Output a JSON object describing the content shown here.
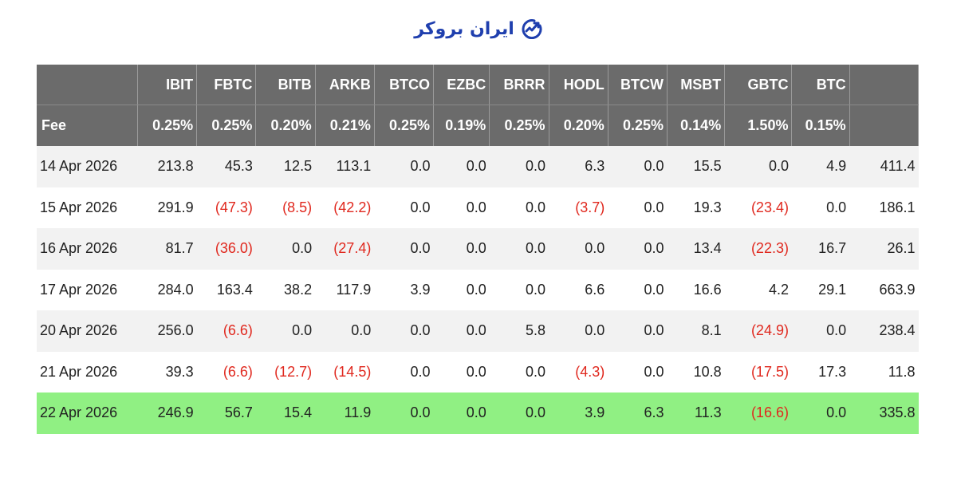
{
  "brand": {
    "logo_text": "ایران بروکر",
    "icon": "trend-chart-icon",
    "color": "#1f3fae"
  },
  "table": {
    "columns": [
      "",
      "IBIT",
      "FBTC",
      "BITB",
      "ARKB",
      "BTCO",
      "EZBC",
      "BRRR",
      "HODL",
      "BTCW",
      "MSBT",
      "GBTC",
      "BTC",
      ""
    ],
    "fee_row": [
      "Fee",
      "0.25%",
      "0.25%",
      "0.20%",
      "0.21%",
      "0.25%",
      "0.19%",
      "0.25%",
      "0.20%",
      "0.25%",
      "0.14%",
      "1.50%",
      "0.15%",
      ""
    ],
    "rows": [
      {
        "date": "14 Apr 2026",
        "values": [
          "213.8",
          "45.3",
          "12.5",
          "113.1",
          "0.0",
          "0.0",
          "0.0",
          "6.3",
          "0.0",
          "15.5",
          "0.0",
          "4.9",
          "411.4"
        ],
        "highlight": false
      },
      {
        "date": "15 Apr 2026",
        "values": [
          "291.9",
          "(47.3)",
          "(8.5)",
          "(42.2)",
          "0.0",
          "0.0",
          "0.0",
          "(3.7)",
          "0.0",
          "19.3",
          "(23.4)",
          "0.0",
          "186.1"
        ],
        "highlight": false
      },
      {
        "date": "16 Apr 2026",
        "values": [
          "81.7",
          "(36.0)",
          "0.0",
          "(27.4)",
          "0.0",
          "0.0",
          "0.0",
          "0.0",
          "0.0",
          "13.4",
          "(22.3)",
          "16.7",
          "26.1"
        ],
        "highlight": false
      },
      {
        "date": "17 Apr 2026",
        "values": [
          "284.0",
          "163.4",
          "38.2",
          "117.9",
          "3.9",
          "0.0",
          "0.0",
          "6.6",
          "0.0",
          "16.6",
          "4.2",
          "29.1",
          "663.9"
        ],
        "highlight": false
      },
      {
        "date": "20 Apr 2026",
        "values": [
          "256.0",
          "(6.6)",
          "0.0",
          "0.0",
          "0.0",
          "0.0",
          "5.8",
          "0.0",
          "0.0",
          "8.1",
          "(24.9)",
          "0.0",
          "238.4"
        ],
        "highlight": false
      },
      {
        "date": "21 Apr 2026",
        "values": [
          "39.3",
          "(6.6)",
          "(12.7)",
          "(14.5)",
          "0.0",
          "0.0",
          "0.0",
          "(4.3)",
          "0.0",
          "10.8",
          "(17.5)",
          "17.3",
          "11.8"
        ],
        "highlight": false
      },
      {
        "date": "22 Apr 2026",
        "values": [
          "246.9",
          "56.7",
          "15.4",
          "11.9",
          "0.0",
          "0.0",
          "0.0",
          "3.9",
          "6.3",
          "11.3",
          "(16.6)",
          "0.0",
          "335.8"
        ],
        "highlight": true
      }
    ]
  },
  "colors": {
    "header_bg": "#6b6b6b",
    "row_alt_bg": "#f2f2f2",
    "highlight_bg": "#90f083",
    "negative_text": "#e0281e"
  }
}
